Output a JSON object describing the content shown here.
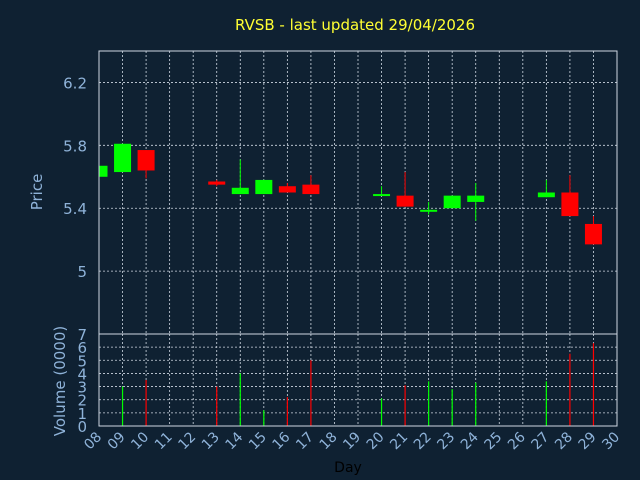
{
  "title": "RVSB - last updated 29/04/2026",
  "colors": {
    "background": "#0f2132",
    "title": "#ffff33",
    "axis_text": "#8fb3d9",
    "frame": "#cfd8e3",
    "grid": "#cfd8e3",
    "up": "#00ff00",
    "down": "#ff0000",
    "vol_line": "#ffffff"
  },
  "chart_data": [
    {
      "type": "candlestick",
      "ylabel": "Price",
      "ylim": [
        4.6,
        6.4
      ],
      "yticks": [
        5,
        5.4,
        5.8,
        6.2
      ],
      "ytick_labels": [
        "5",
        "5.4",
        "5.8",
        "6.2"
      ],
      "x_grid": [
        9,
        10,
        11,
        12,
        13,
        14,
        15,
        16,
        17,
        18,
        19,
        20,
        21,
        22,
        23,
        24,
        25,
        26,
        27,
        28,
        29
      ],
      "grid": true,
      "candles": [
        {
          "day": 8,
          "open": 5.6,
          "close": 5.67,
          "high": 5.67,
          "low": 5.6
        },
        {
          "day": 9,
          "open": 5.63,
          "close": 5.81,
          "high": 5.81,
          "low": 5.63
        },
        {
          "day": 10,
          "open": 5.77,
          "close": 5.64,
          "high": 5.77,
          "low": 5.59
        },
        {
          "day": 13,
          "open": 5.57,
          "close": 5.55,
          "high": 5.58,
          "low": 5.54
        },
        {
          "day": 14,
          "open": 5.49,
          "close": 5.53,
          "high": 5.71,
          "low": 5.49
        },
        {
          "day": 15,
          "open": 5.49,
          "close": 5.58,
          "high": 5.58,
          "low": 5.49
        },
        {
          "day": 16,
          "open": 5.54,
          "close": 5.5,
          "high": 5.56,
          "low": 5.5
        },
        {
          "day": 17,
          "open": 5.55,
          "close": 5.49,
          "high": 5.61,
          "low": 5.49
        },
        {
          "day": 20,
          "open": 5.48,
          "close": 5.49,
          "high": 5.54,
          "low": 5.48
        },
        {
          "day": 21,
          "open": 5.48,
          "close": 5.41,
          "high": 5.63,
          "low": 5.41
        },
        {
          "day": 22,
          "open": 5.38,
          "close": 5.39,
          "high": 5.44,
          "low": 5.36
        },
        {
          "day": 23,
          "open": 5.4,
          "close": 5.48,
          "high": 5.48,
          "low": 5.4
        },
        {
          "day": 24,
          "open": 5.44,
          "close": 5.48,
          "high": 5.56,
          "low": 5.32
        },
        {
          "day": 27,
          "open": 5.47,
          "close": 5.5,
          "high": 5.58,
          "low": 5.47
        },
        {
          "day": 28,
          "open": 5.5,
          "close": 5.35,
          "high": 5.61,
          "low": 5.35
        },
        {
          "day": 29,
          "open": 5.3,
          "close": 5.17,
          "high": 5.35,
          "low": 5.17
        }
      ]
    },
    {
      "type": "bar",
      "ylabel": "Volume (0000)",
      "xlabel": "Day",
      "ylim": [
        0,
        7
      ],
      "yticks": [
        0,
        1,
        2,
        3,
        4,
        5,
        6,
        7
      ],
      "ytick_labels": [
        "0",
        "1",
        "2",
        "3",
        "4",
        "5",
        "6",
        "7"
      ],
      "x_ticks": [
        8,
        9,
        10,
        11,
        12,
        13,
        14,
        15,
        16,
        17,
        18,
        19,
        20,
        21,
        22,
        23,
        24,
        25,
        26,
        27,
        28,
        29,
        30
      ],
      "x_tick_labels": [
        "08",
        "09",
        "10",
        "11",
        "12",
        "13",
        "14",
        "15",
        "16",
        "17",
        "18",
        "19",
        "20",
        "21",
        "22",
        "23",
        "24",
        "25",
        "26",
        "27",
        "28",
        "29",
        "30"
      ],
      "grid": true,
      "bars": [
        {
          "day": 9,
          "value": 3.0,
          "direction": "up"
        },
        {
          "day": 10,
          "value": 3.5,
          "direction": "down"
        },
        {
          "day": 13,
          "value": 3.0,
          "direction": "down"
        },
        {
          "day": 14,
          "value": 4.0,
          "direction": "up"
        },
        {
          "day": 15,
          "value": 1.2,
          "direction": "up"
        },
        {
          "day": 16,
          "value": 2.2,
          "direction": "down"
        },
        {
          "day": 17,
          "value": 5.0,
          "direction": "down"
        },
        {
          "day": 20,
          "value": 2.1,
          "direction": "up"
        },
        {
          "day": 21,
          "value": 3.1,
          "direction": "down"
        },
        {
          "day": 22,
          "value": 3.4,
          "direction": "up"
        },
        {
          "day": 23,
          "value": 2.8,
          "direction": "up"
        },
        {
          "day": 24,
          "value": 3.3,
          "direction": "up"
        },
        {
          "day": 27,
          "value": 3.4,
          "direction": "up"
        },
        {
          "day": 28,
          "value": 5.5,
          "direction": "down"
        },
        {
          "day": 29,
          "value": 6.3,
          "direction": "down"
        }
      ]
    }
  ]
}
